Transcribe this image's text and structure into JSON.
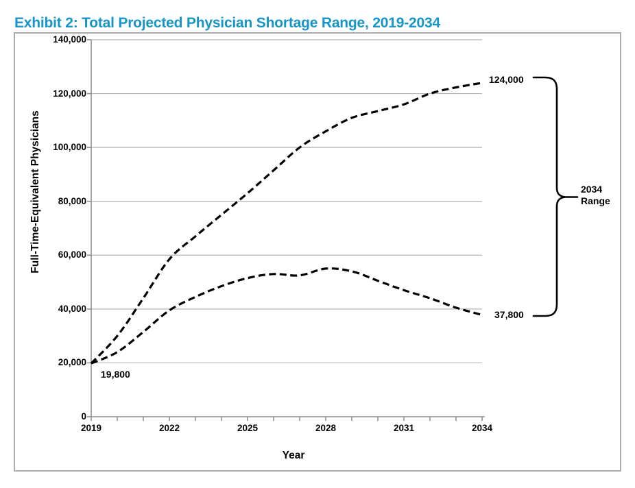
{
  "title": "Exhibit 2: Total Projected Physician Shortage Range, 2019-2034",
  "colors": {
    "title_blue": "#1794C8",
    "curve": "#000000",
    "gridline": "#b3b3b3",
    "axis": "#8f8f8f",
    "border": "#ababab",
    "text": "#000000"
  },
  "chart_data": {
    "type": "line",
    "title": "Exhibit 2: Total Projected Physician Shortage Range, 2019-2034",
    "xlabel": "Year",
    "ylabel": "Full-Time-Equivalent Physicians",
    "x": [
      2019,
      2020,
      2021,
      2022,
      2023,
      2024,
      2025,
      2026,
      2027,
      2028,
      2029,
      2030,
      2031,
      2032,
      2033,
      2034
    ],
    "series": [
      {
        "name": "upper_bound_projected_shortage",
        "line_style": "dashed",
        "values": [
          19800,
          30000,
          44000,
          58500,
          67000,
          75000,
          83000,
          91500,
          100000,
          106000,
          111000,
          113500,
          116000,
          120000,
          122300,
          124000
        ]
      },
      {
        "name": "lower_bound_projected_shortage",
        "line_style": "dashed",
        "values": [
          19800,
          24000,
          31500,
          39500,
          44500,
          48500,
          51500,
          53000,
          52500,
          55000,
          54000,
          50500,
          47000,
          44000,
          40500,
          37800
        ]
      }
    ],
    "ylim": [
      0,
      140000
    ],
    "ytick_step": 20000,
    "y_tick_labels": [
      "0",
      "20,000",
      "40,000",
      "60,000",
      "80,000",
      "100,000",
      "120,000",
      "140,000"
    ],
    "x_ticks_labeled": [
      "2019",
      "2022",
      "2025",
      "2028",
      "2031",
      "2034"
    ],
    "grid": "horizontal",
    "legend": "none",
    "annotations": {
      "start_value": "19,800",
      "upper_end_value": "124,000",
      "lower_end_value": "37,800",
      "range_label_line1": "2034",
      "range_label_line2": "Range"
    }
  }
}
